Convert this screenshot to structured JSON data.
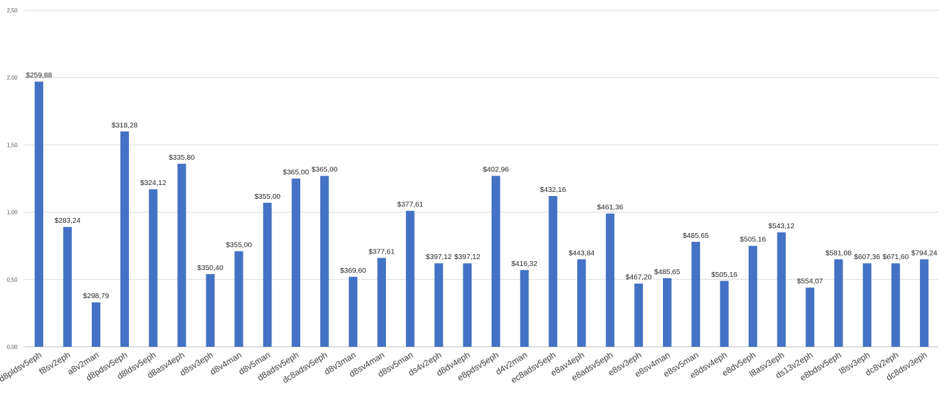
{
  "chart_data": {
    "type": "bar",
    "title": "",
    "xlabel": "",
    "ylabel": "",
    "ylim": [
      0,
      2.5
    ],
    "yticks": [
      "0,00",
      "0,50",
      "1,00",
      "1,50",
      "2,00",
      "2,50"
    ],
    "ytick_values": [
      0,
      0.5,
      1.0,
      1.5,
      2.0,
      2.5
    ],
    "grid": true,
    "legend": "none",
    "bar_color": "#4472c4",
    "categories": [
      "d8pldsv5eph",
      "f8sv2eph",
      "a8v2man",
      "d8pdsv5eph",
      "d8ldsv5eph",
      "d8asv4eph",
      "d8sv3eph",
      "d8v4man",
      "d8v5man",
      "d8adsv5eph",
      "dc8adsv5eph",
      "d8v3man",
      "d8sv4man",
      "d8sv5man",
      "ds4v2eph",
      "d8dv4eph",
      "e8pdsv5eph",
      "d4v2man",
      "ec8adsv5eph",
      "e8av4eph",
      "e8adsv5eph",
      "e8sv3eph",
      "e8sv4man",
      "e8sv5man",
      "e8dsv4eph",
      "e8dv5eph",
      "l8asv3eph",
      "ds13v2eph",
      "e8bdsv5eph",
      "l8sv3eph",
      "dc8v2eph",
      "dc8dsv3eph"
    ],
    "values": [
      1.97,
      0.89,
      0.33,
      1.6,
      1.17,
      1.36,
      0.54,
      0.71,
      1.07,
      1.25,
      1.27,
      0.52,
      0.66,
      1.01,
      0.62,
      0.62,
      1.27,
      0.57,
      1.12,
      0.65,
      0.99,
      0.47,
      0.51,
      0.78,
      0.49,
      0.75,
      0.85,
      0.44,
      0.65,
      0.62,
      0.62,
      0.65
    ],
    "data_labels": [
      "$259,88",
      "$283,24",
      "$298,79",
      "$318,28",
      "$324,12",
      "$335,80",
      "$350,40",
      "$355,00",
      "$355,00",
      "$365,00",
      "$365,00",
      "$369,60",
      "$377,61",
      "$377,61",
      "$397,12",
      "$397,12",
      "$402,96",
      "$416,32",
      "$432,16",
      "$443,84",
      "$461,36",
      "$467,20",
      "$485,65",
      "$485,65",
      "$505,16",
      "$505,16",
      "$543,12",
      "$554,07",
      "$581,08",
      "$607,36",
      "$671,60",
      "$794,24"
    ]
  }
}
